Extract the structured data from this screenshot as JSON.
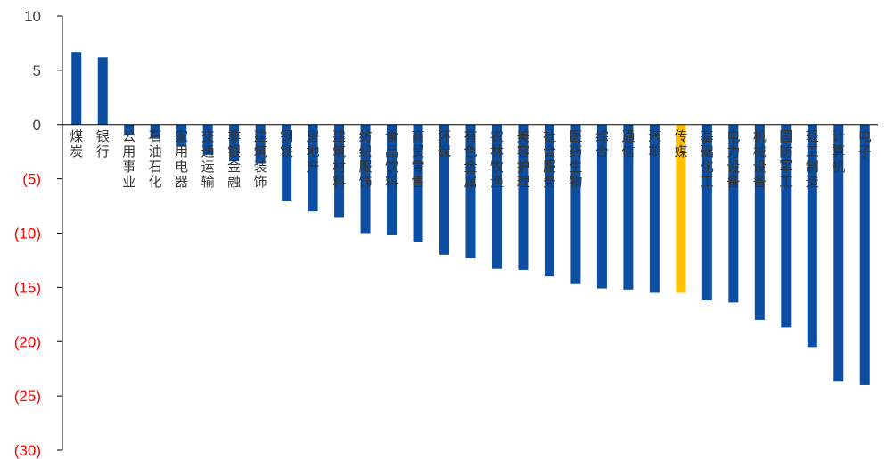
{
  "chart_data": {
    "type": "bar",
    "title": "",
    "xlabel": "",
    "ylabel": "",
    "ylim": [
      -30,
      10
    ],
    "yticks": [
      10,
      5,
      0,
      -5,
      -10,
      -15,
      -20,
      -25,
      -30
    ],
    "ytick_labels": [
      "10",
      "5",
      "0",
      "(5)",
      "(10)",
      "(15)",
      "(20)",
      "(25)",
      "(30)"
    ],
    "grid": false,
    "legend": "none",
    "categories": [
      "煤炭",
      "银行",
      "公用事业",
      "石油石化",
      "家用电器",
      "交通运输",
      "非银金融",
      "建筑装饰",
      "钢铁",
      "房地产",
      "建筑材料",
      "纺织服饰",
      "食品饮料",
      "商贸零售",
      "环保",
      "有色金属",
      "农林牧渔",
      "美容护理",
      "社会服务",
      "医药生物",
      "综合",
      "通信",
      "汽车",
      "传媒",
      "基础化工",
      "电力设备",
      "机械设备",
      "国防军工",
      "轻工制造",
      "计算机",
      "电子"
    ],
    "values": [
      6.7,
      6.2,
      -1.0,
      -1.3,
      -2.0,
      -2.8,
      -3.4,
      -3.6,
      -7.0,
      -8.0,
      -8.6,
      -10.0,
      -10.2,
      -10.8,
      -12.0,
      -12.3,
      -13.3,
      -13.4,
      -14.0,
      -14.7,
      -15.1,
      -15.2,
      -15.5,
      -15.5,
      -16.2,
      -16.4,
      -18.0,
      -18.7,
      -20.5,
      -23.7,
      -24.0
    ],
    "highlight_index": 23
  },
  "colors": {
    "bar": "#0B4EA2",
    "highlight": "#FFC000",
    "positive_tick": "#404040",
    "negative_tick": "#FF0000",
    "axis": "#000000"
  }
}
